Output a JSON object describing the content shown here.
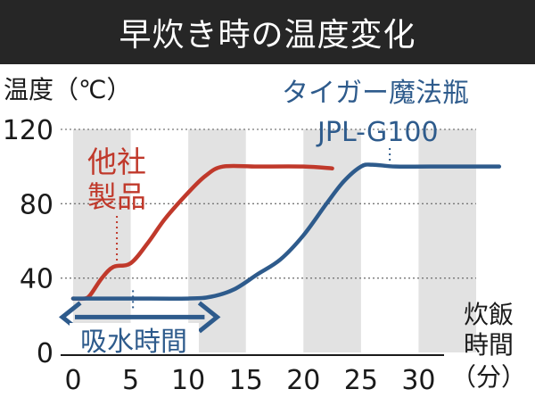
{
  "chart_data": {
    "type": "line",
    "title": "早炊き時の温度変化",
    "ylabel": "温度（℃）",
    "xlabel_lines": [
      "炊飯",
      "時間",
      "（分）"
    ],
    "xlim": [
      0,
      35
    ],
    "ylim": [
      0,
      120
    ],
    "xticks": [
      0,
      5,
      10,
      15,
      20,
      25,
      30
    ],
    "yticks": [
      0,
      40,
      80,
      120
    ],
    "grid": "alternating vertical bands",
    "colors": {
      "red": "#c0392b",
      "blue": "#2e5b8c",
      "band": "#e2e2e2"
    },
    "series": [
      {
        "name": "他社製品",
        "name_lines": [
          "他社",
          "製品"
        ],
        "color": "#c0392b",
        "points": [
          [
            0,
            29
          ],
          [
            1,
            29
          ],
          [
            1.5,
            31
          ],
          [
            2.5,
            40
          ],
          [
            3.5,
            46
          ],
          [
            5,
            48
          ],
          [
            6.5,
            59
          ],
          [
            8,
            72
          ],
          [
            10,
            86
          ],
          [
            11.5,
            95
          ],
          [
            13,
            100
          ],
          [
            16,
            100
          ],
          [
            20,
            100
          ],
          [
            22.5,
            99
          ]
        ]
      },
      {
        "name": "タイガー魔法瓶 JPL-G100",
        "name_lines": [
          "タイガー魔法瓶",
          "JPL-G100"
        ],
        "color": "#2e5b8c",
        "points": [
          [
            0,
            29
          ],
          [
            5,
            29
          ],
          [
            10,
            29
          ],
          [
            12,
            30
          ],
          [
            14,
            34
          ],
          [
            16,
            42
          ],
          [
            18,
            50
          ],
          [
            20,
            63
          ],
          [
            22,
            80
          ],
          [
            23.5,
            92
          ],
          [
            25,
            100
          ],
          [
            26,
            101
          ],
          [
            28,
            100
          ],
          [
            31,
            100
          ],
          [
            37,
            100
          ]
        ]
      }
    ],
    "annotations": [
      {
        "text": "吸水時間",
        "x_start": 0,
        "x_end": 12.5,
        "y": 19
      }
    ]
  }
}
